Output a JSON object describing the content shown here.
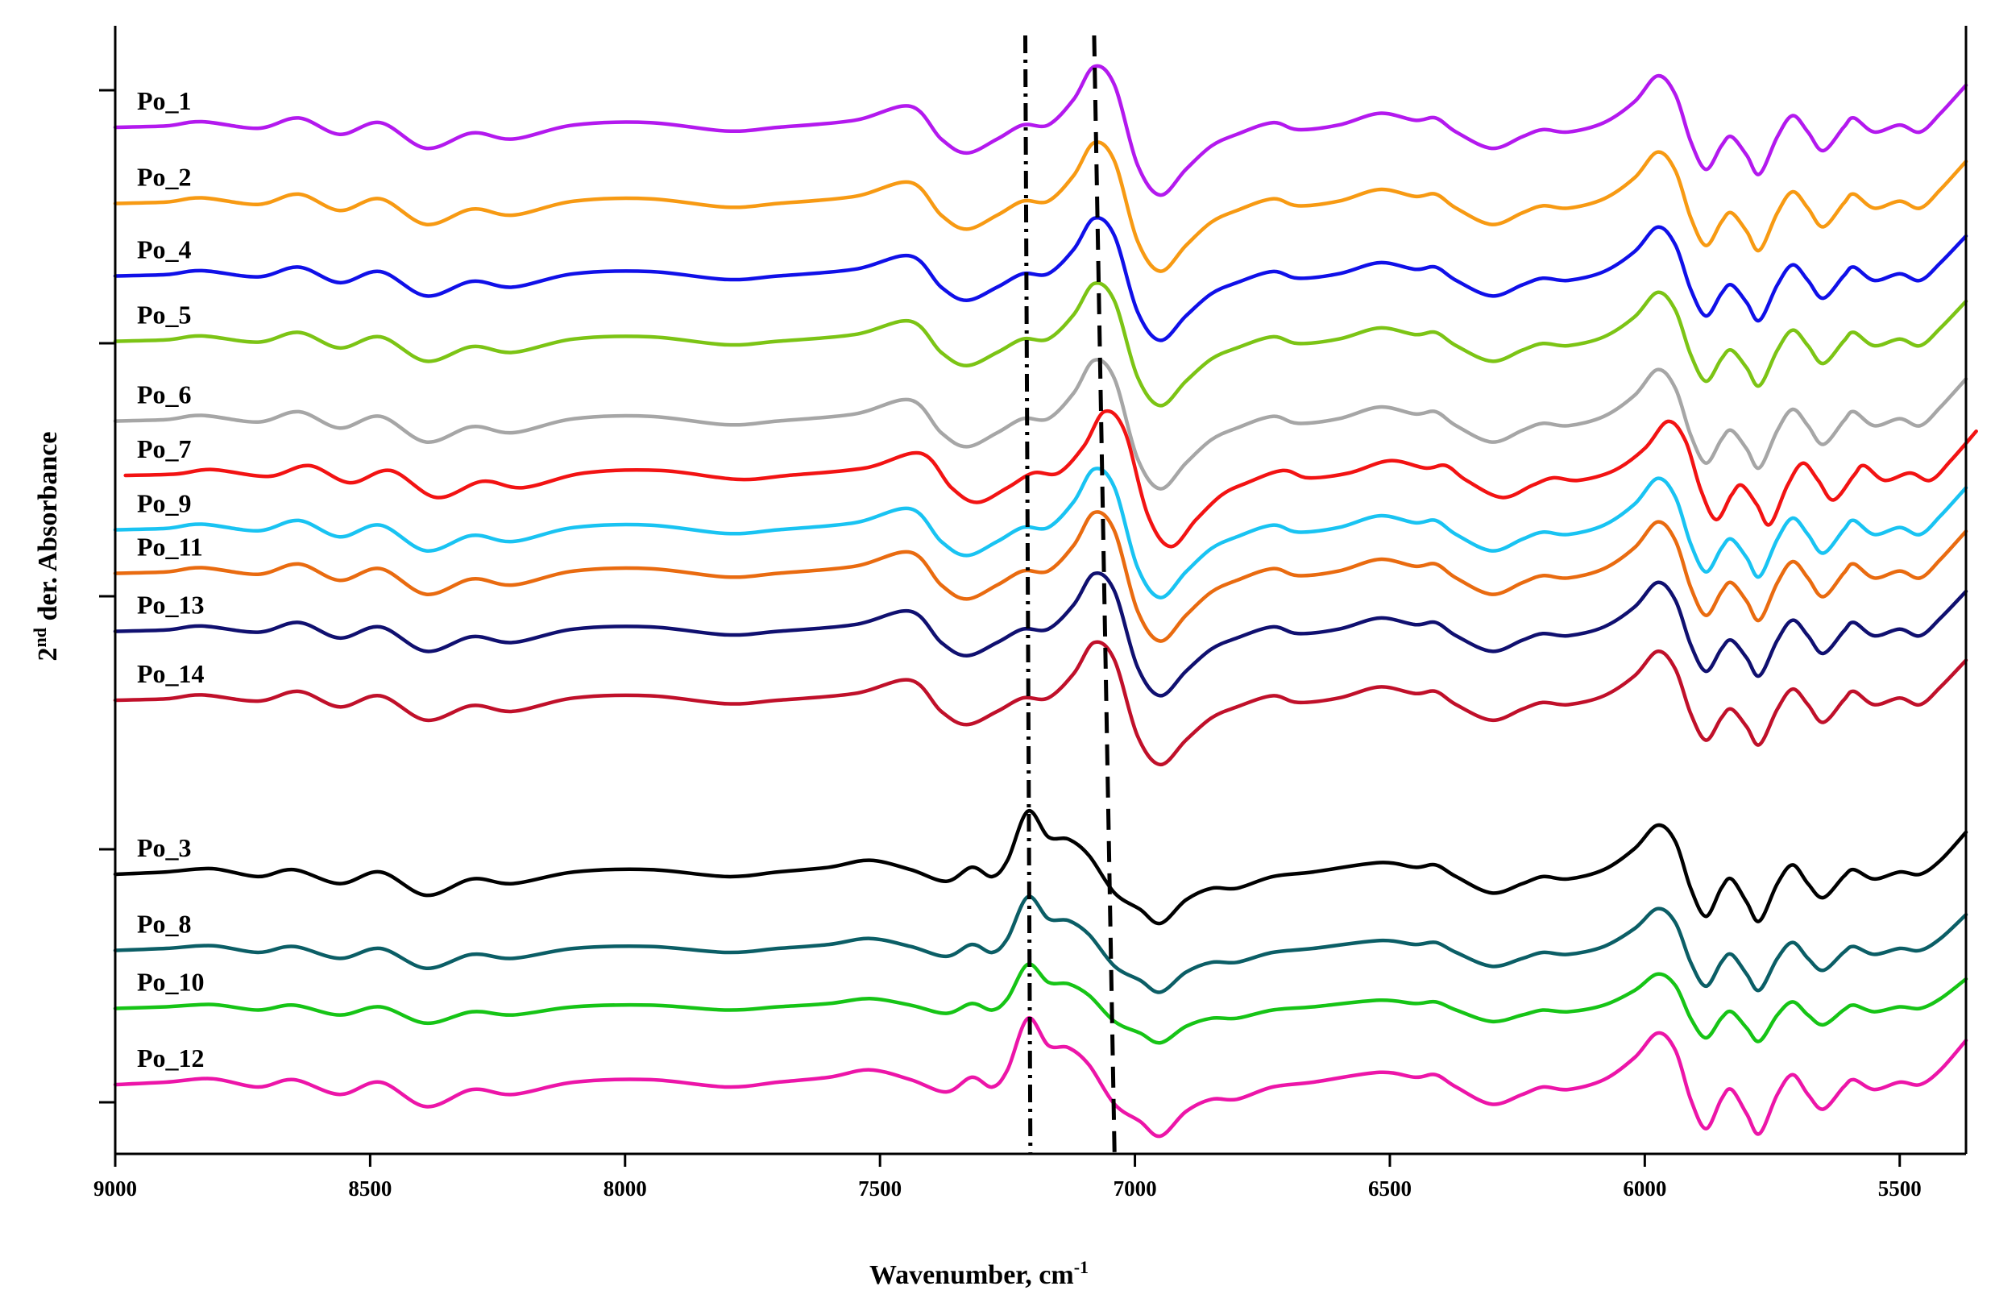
{
  "chart_data": {
    "type": "line",
    "title": "",
    "xlabel": "Wavenumber, cm-1",
    "xlabel_main": "Wavenumber, cm",
    "xlabel_sup": "-1",
    "ylabel": "2nd der. Absorbance",
    "ylabel_prefix": "2",
    "ylabel_sup": "nd",
    "ylabel_main": " der. Absorbance",
    "xlim": [
      9000,
      5370
    ],
    "x_reversed": true,
    "xticks": [
      "9000",
      "8500",
      "8000",
      "7500",
      "7000",
      "6500",
      "6000",
      "5500"
    ],
    "ytick_count": 5,
    "reference_lines": [
      {
        "name": "dashed-line",
        "style": "dashed",
        "x_top": 7080,
        "x_bottom": 7040
      },
      {
        "name": "dash-dot-line",
        "style": "dash-dot",
        "x_top": 7215,
        "x_bottom": 7205
      }
    ],
    "group_a_shape": [
      [
        9000,
        0.0
      ],
      [
        8900,
        0.03
      ],
      [
        8830,
        0.12
      ],
      [
        8720,
        -0.02
      ],
      [
        8640,
        0.2
      ],
      [
        8560,
        -0.15
      ],
      [
        8480,
        0.1
      ],
      [
        8390,
        -0.45
      ],
      [
        8300,
        -0.12
      ],
      [
        8220,
        -0.25
      ],
      [
        8100,
        0.05
      ],
      [
        7950,
        0.1
      ],
      [
        7800,
        -0.08
      ],
      [
        7700,
        0.0
      ],
      [
        7550,
        0.15
      ],
      [
        7440,
        0.45
      ],
      [
        7380,
        -0.25
      ],
      [
        7330,
        -0.55
      ],
      [
        7270,
        -0.25
      ],
      [
        7220,
        0.05
      ],
      [
        7170,
        0.05
      ],
      [
        7120,
        0.6
      ],
      [
        7080,
        1.3
      ],
      [
        7040,
        0.9
      ],
      [
        6995,
        -0.8
      ],
      [
        6950,
        -1.45
      ],
      [
        6900,
        -0.9
      ],
      [
        6850,
        -0.4
      ],
      [
        6800,
        -0.15
      ],
      [
        6730,
        0.1
      ],
      [
        6680,
        -0.05
      ],
      [
        6600,
        0.05
      ],
      [
        6520,
        0.3
      ],
      [
        6450,
        0.15
      ],
      [
        6410,
        0.2
      ],
      [
        6370,
        -0.1
      ],
      [
        6300,
        -0.45
      ],
      [
        6240,
        -0.2
      ],
      [
        6200,
        -0.05
      ],
      [
        6150,
        -0.1
      ],
      [
        6080,
        0.1
      ],
      [
        6020,
        0.55
      ],
      [
        5975,
        1.1
      ],
      [
        5940,
        0.7
      ],
      [
        5910,
        -0.3
      ],
      [
        5880,
        -0.9
      ],
      [
        5850,
        -0.4
      ],
      [
        5830,
        -0.2
      ],
      [
        5800,
        -0.6
      ],
      [
        5775,
        -1.0
      ],
      [
        5740,
        -0.2
      ],
      [
        5710,
        0.25
      ],
      [
        5680,
        -0.1
      ],
      [
        5650,
        -0.5
      ],
      [
        5610,
        0.0
      ],
      [
        5590,
        0.2
      ],
      [
        5550,
        -0.1
      ],
      [
        5500,
        0.05
      ],
      [
        5460,
        -0.1
      ],
      [
        5420,
        0.3
      ],
      [
        5370,
        0.9
      ]
    ],
    "group_b_shape": [
      [
        9000,
        0.0
      ],
      [
        8900,
        0.05
      ],
      [
        8810,
        0.12
      ],
      [
        8720,
        -0.05
      ],
      [
        8650,
        0.1
      ],
      [
        8560,
        -0.2
      ],
      [
        8480,
        0.05
      ],
      [
        8390,
        -0.45
      ],
      [
        8300,
        -0.1
      ],
      [
        8220,
        -0.2
      ],
      [
        8100,
        0.05
      ],
      [
        7950,
        0.1
      ],
      [
        7800,
        -0.05
      ],
      [
        7700,
        0.05
      ],
      [
        7600,
        0.15
      ],
      [
        7520,
        0.3
      ],
      [
        7440,
        0.1
      ],
      [
        7370,
        -0.15
      ],
      [
        7320,
        0.15
      ],
      [
        7280,
        -0.05
      ],
      [
        7250,
        0.3
      ],
      [
        7210,
        1.35
      ],
      [
        7170,
        0.8
      ],
      [
        7130,
        0.75
      ],
      [
        7090,
        0.4
      ],
      [
        7040,
        -0.4
      ],
      [
        6990,
        -0.75
      ],
      [
        6950,
        -1.05
      ],
      [
        6900,
        -0.55
      ],
      [
        6850,
        -0.3
      ],
      [
        6800,
        -0.3
      ],
      [
        6730,
        -0.05
      ],
      [
        6650,
        0.05
      ],
      [
        6520,
        0.25
      ],
      [
        6450,
        0.15
      ],
      [
        6410,
        0.2
      ],
      [
        6370,
        -0.05
      ],
      [
        6300,
        -0.4
      ],
      [
        6240,
        -0.2
      ],
      [
        6200,
        -0.05
      ],
      [
        6150,
        -0.1
      ],
      [
        6080,
        0.1
      ],
      [
        6020,
        0.55
      ],
      [
        5975,
        1.05
      ],
      [
        5940,
        0.7
      ],
      [
        5910,
        -0.3
      ],
      [
        5880,
        -0.9
      ],
      [
        5850,
        -0.3
      ],
      [
        5830,
        -0.1
      ],
      [
        5800,
        -0.6
      ],
      [
        5775,
        -1.0
      ],
      [
        5740,
        -0.2
      ],
      [
        5710,
        0.2
      ],
      [
        5680,
        -0.2
      ],
      [
        5650,
        -0.5
      ],
      [
        5610,
        -0.05
      ],
      [
        5590,
        0.1
      ],
      [
        5550,
        -0.1
      ],
      [
        5500,
        0.05
      ],
      [
        5460,
        0.0
      ],
      [
        5420,
        0.3
      ],
      [
        5370,
        0.9
      ]
    ],
    "series": [
      {
        "name": "Po_1",
        "group": "a",
        "offset": 0.0,
        "amp": 1.0,
        "x_shift": 0,
        "color": "#b319ee"
      },
      {
        "name": "Po_2",
        "group": "a",
        "offset": 1.05,
        "amp": 1.0,
        "x_shift": 0,
        "color": "#f79a13"
      },
      {
        "name": "Po_4",
        "group": "a",
        "offset": 2.05,
        "amp": 0.95,
        "x_shift": 0,
        "color": "#1010e8"
      },
      {
        "name": "Po_5",
        "group": "a",
        "offset": 2.95,
        "amp": 0.95,
        "x_shift": 0,
        "color": "#7cc415"
      },
      {
        "name": "Po_6",
        "group": "a",
        "offset": 4.05,
        "amp": 1.0,
        "x_shift": 0,
        "color": "#a6a6a6"
      },
      {
        "name": "Po_7",
        "group": "a",
        "offset": 4.8,
        "amp": 1.05,
        "x_shift": -20,
        "color": "#f21313"
      },
      {
        "name": "Po_9",
        "group": "a",
        "offset": 5.55,
        "amp": 1.0,
        "x_shift": 0,
        "color": "#19c3f2"
      },
      {
        "name": "Po_11",
        "group": "a",
        "offset": 6.15,
        "amp": 1.0,
        "x_shift": 0,
        "color": "#e96b10"
      },
      {
        "name": "Po_13",
        "group": "a",
        "offset": 6.95,
        "amp": 0.95,
        "x_shift": 0,
        "color": "#101070"
      },
      {
        "name": "Po_14",
        "group": "a",
        "offset": 7.9,
        "amp": 0.95,
        "x_shift": 0,
        "color": "#c0102a"
      },
      {
        "name": "Po_3",
        "group": "b",
        "offset": 10.3,
        "amp": 1.0,
        "x_shift": 0,
        "color": "#000000"
      },
      {
        "name": "Po_8",
        "group": "b",
        "offset": 11.35,
        "amp": 0.85,
        "x_shift": 0,
        "color": "#0b5e66"
      },
      {
        "name": "Po_10",
        "group": "b",
        "offset": 12.15,
        "amp": 0.7,
        "x_shift": 0,
        "color": "#16c416"
      },
      {
        "name": "Po_12",
        "group": "b",
        "offset": 13.2,
        "amp": 1.05,
        "x_shift": 0,
        "color": "#ec15a8"
      }
    ]
  }
}
